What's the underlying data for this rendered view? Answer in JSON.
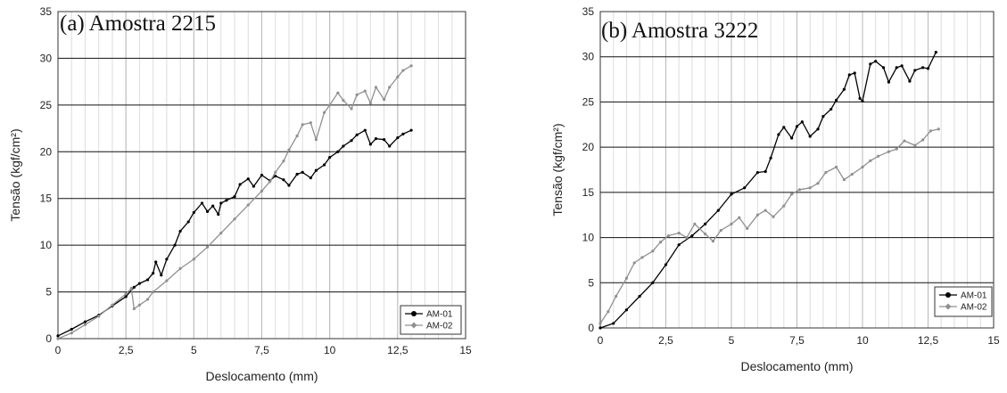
{
  "chart_data": [
    {
      "type": "line",
      "title": "(a) Amostra 2215",
      "xlabel": "Deslocamento (mm)",
      "ylabel": "Tensão (kgf/cm²)",
      "xlim": [
        0,
        15
      ],
      "ylim": [
        0,
        35
      ],
      "xticks": [
        0,
        2.5,
        5,
        7.5,
        10,
        12.5,
        15
      ],
      "xtick_labels": [
        "0",
        "2,5",
        "5",
        "7,5",
        "10",
        "12,5",
        "15"
      ],
      "yticks": [
        0,
        5,
        10,
        15,
        20,
        25,
        30,
        35
      ],
      "ytick_labels": [
        "0",
        "5",
        "10",
        "15",
        "20",
        "25",
        "30",
        "35"
      ],
      "grid": true,
      "legend_position": "bottom-right",
      "series": [
        {
          "name": "AM-01",
          "color": "#000000",
          "x": [
            0,
            0.5,
            1.0,
            1.5,
            2.0,
            2.5,
            2.8,
            3.0,
            3.3,
            3.5,
            3.6,
            3.8,
            4.0,
            4.3,
            4.5,
            4.8,
            5.0,
            5.3,
            5.5,
            5.7,
            5.9,
            6.0,
            6.2,
            6.5,
            6.7,
            7.0,
            7.2,
            7.5,
            7.8,
            8.0,
            8.3,
            8.5,
            8.8,
            9.0,
            9.3,
            9.5,
            9.8,
            10.0,
            10.3,
            10.5,
            10.8,
            11.0,
            11.3,
            11.5,
            11.7,
            12.0,
            12.2,
            12.5,
            12.7,
            13.0
          ],
          "y": [
            0.3,
            1.0,
            1.8,
            2.5,
            3.5,
            4.5,
            5.5,
            5.9,
            6.3,
            7.0,
            8.2,
            6.8,
            8.5,
            10.0,
            11.5,
            12.5,
            13.5,
            14.5,
            13.6,
            14.2,
            13.3,
            14.5,
            14.8,
            15.2,
            16.5,
            17.1,
            16.3,
            17.5,
            16.9,
            17.4,
            17.0,
            16.4,
            17.6,
            17.8,
            17.2,
            18.0,
            18.6,
            19.4,
            20.0,
            20.6,
            21.2,
            21.8,
            22.3,
            20.8,
            21.4,
            21.3,
            20.6,
            21.5,
            21.9,
            22.3
          ]
        },
        {
          "name": "AM-02",
          "color": "#909090",
          "x": [
            0,
            0.5,
            1.0,
            1.5,
            2.0,
            2.5,
            2.7,
            2.8,
            3.0,
            3.3,
            3.5,
            4.0,
            4.5,
            5.0,
            5.5,
            6.0,
            6.5,
            7.0,
            7.5,
            7.8,
            8.0,
            8.3,
            8.5,
            8.8,
            9.0,
            9.3,
            9.5,
            9.8,
            10.0,
            10.3,
            10.5,
            10.8,
            11.0,
            11.3,
            11.5,
            11.7,
            12.0,
            12.2,
            12.5,
            12.7,
            13.0
          ],
          "y": [
            0,
            0.6,
            1.5,
            2.4,
            3.6,
            4.8,
            5.4,
            3.2,
            3.6,
            4.2,
            5.0,
            6.2,
            7.5,
            8.5,
            9.8,
            11.3,
            12.8,
            14.3,
            15.8,
            16.8,
            17.8,
            19.0,
            20.2,
            21.7,
            22.9,
            23.1,
            21.3,
            24.2,
            25.0,
            26.3,
            25.5,
            24.6,
            26.1,
            26.5,
            25.2,
            26.9,
            25.6,
            26.9,
            28.0,
            28.7,
            29.2
          ]
        }
      ]
    },
    {
      "type": "line",
      "title": "(b) Amostra 3222",
      "xlabel": "Deslocamento (mm)",
      "ylabel": "Tensão (kgf/cm²)",
      "xlim": [
        0,
        15
      ],
      "ylim": [
        0,
        35
      ],
      "xticks": [
        0,
        2.5,
        5,
        7.5,
        10,
        12.5,
        15
      ],
      "xtick_labels": [
        "0",
        "2,5",
        "5",
        "7,5",
        "10",
        "12,5",
        "15"
      ],
      "yticks": [
        0,
        5,
        10,
        15,
        20,
        25,
        30,
        35
      ],
      "ytick_labels": [
        "0",
        "5",
        "10",
        "15",
        "20",
        "25",
        "30",
        "35"
      ],
      "grid": true,
      "legend_position": "bottom-right",
      "series": [
        {
          "name": "AM-01",
          "color": "#000000",
          "x": [
            0,
            0.5,
            1.0,
            1.5,
            2.0,
            2.5,
            3.0,
            3.5,
            4.0,
            4.5,
            5.0,
            5.5,
            6.0,
            6.3,
            6.5,
            6.8,
            7.0,
            7.3,
            7.5,
            7.7,
            8.0,
            8.3,
            8.5,
            8.8,
            9.0,
            9.3,
            9.5,
            9.7,
            9.9,
            10.0,
            10.3,
            10.5,
            10.8,
            11.0,
            11.3,
            11.5,
            11.8,
            12.0,
            12.3,
            12.5,
            12.8
          ],
          "y": [
            0,
            0.5,
            2.0,
            3.5,
            5.0,
            7.0,
            9.2,
            10.2,
            11.5,
            13.0,
            14.8,
            15.5,
            17.2,
            17.3,
            18.8,
            21.4,
            22.2,
            21.0,
            22.3,
            22.8,
            21.2,
            22.0,
            23.4,
            24.2,
            25.2,
            26.4,
            28.0,
            28.2,
            25.4,
            25.1,
            29.2,
            29.5,
            28.8,
            27.2,
            28.8,
            29.0,
            27.3,
            28.5,
            28.8,
            28.7,
            30.5
          ]
        },
        {
          "name": "AM-02",
          "color": "#909090",
          "x": [
            0,
            0.3,
            0.6,
            1.0,
            1.3,
            1.6,
            2.0,
            2.3,
            2.6,
            3.0,
            3.3,
            3.6,
            4.0,
            4.3,
            4.6,
            5.0,
            5.3,
            5.6,
            6.0,
            6.3,
            6.6,
            7.0,
            7.3,
            7.6,
            8.0,
            8.3,
            8.6,
            9.0,
            9.3,
            9.6,
            10.0,
            10.3,
            10.6,
            11.0,
            11.3,
            11.6,
            12.0,
            12.3,
            12.6,
            12.9
          ],
          "y": [
            0.5,
            1.8,
            3.5,
            5.5,
            7.2,
            7.8,
            8.5,
            9.5,
            10.2,
            10.5,
            10.0,
            11.5,
            10.4,
            9.6,
            10.8,
            11.5,
            12.2,
            11.0,
            12.5,
            13.0,
            12.3,
            13.5,
            14.8,
            15.3,
            15.5,
            16.0,
            17.2,
            17.8,
            16.4,
            17.0,
            17.8,
            18.5,
            19.0,
            19.5,
            19.8,
            20.7,
            20.2,
            20.8,
            21.8,
            22.0
          ]
        }
      ]
    }
  ]
}
